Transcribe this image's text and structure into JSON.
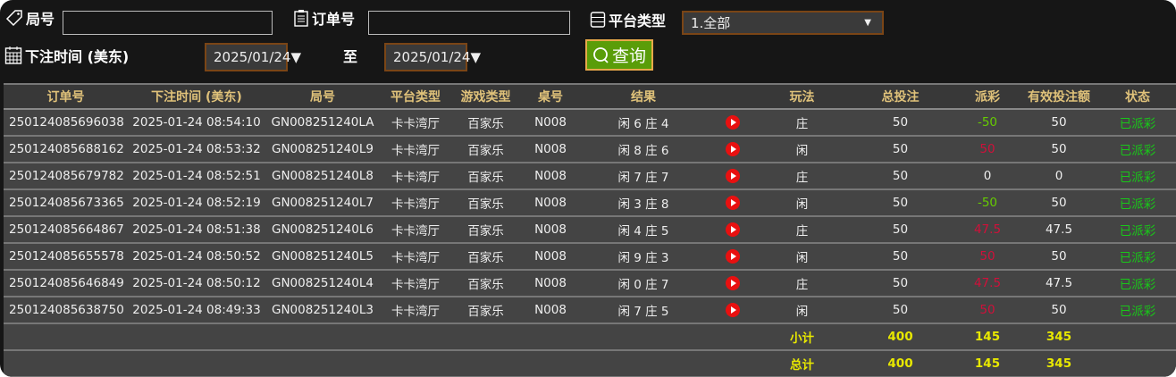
{
  "filters": {
    "round_label": "局号",
    "round_value": "",
    "order_label": "订单号",
    "order_value": "",
    "platform_label": "平台类型",
    "platform_value": "1.全部",
    "time_label": "下注时间 (美东)",
    "date_from": "2025/01/24▼",
    "to_label": "至",
    "date_to": "2025/01/24▼",
    "query_label": "查询"
  },
  "table": {
    "headers": [
      "订单号",
      "下注时间 (美东)",
      "局号",
      "平台类型",
      "游戏类型",
      "桌号",
      "结果",
      "",
      "玩法",
      "总投注",
      "派彩",
      "有效投注额",
      "状态"
    ],
    "rows": [
      {
        "order": "250124085696038",
        "time": "2025-01-24 08:54:10",
        "round": "GN008251240LA",
        "platform": "卡卡湾厅",
        "game": "百家乐",
        "table": "N008",
        "result": "闲 6 庄 4",
        "play": "庄",
        "bet": "50",
        "payout": "-50",
        "valid": "50",
        "status": "已派彩"
      },
      {
        "order": "250124085688162",
        "time": "2025-01-24 08:53:32",
        "round": "GN008251240L9",
        "platform": "卡卡湾厅",
        "game": "百家乐",
        "table": "N008",
        "result": "闲 8 庄 6",
        "play": "闲",
        "bet": "50",
        "payout": "50",
        "valid": "50",
        "status": "已派彩"
      },
      {
        "order": "250124085679782",
        "time": "2025-01-24 08:52:51",
        "round": "GN008251240L8",
        "platform": "卡卡湾厅",
        "game": "百家乐",
        "table": "N008",
        "result": "闲 7 庄 7",
        "play": "庄",
        "bet": "50",
        "payout": "0",
        "valid": "0",
        "status": "已派彩"
      },
      {
        "order": "250124085673365",
        "time": "2025-01-24 08:52:19",
        "round": "GN008251240L7",
        "platform": "卡卡湾厅",
        "game": "百家乐",
        "table": "N008",
        "result": "闲 3 庄 8",
        "play": "闲",
        "bet": "50",
        "payout": "-50",
        "valid": "50",
        "status": "已派彩"
      },
      {
        "order": "250124085664867",
        "time": "2025-01-24 08:51:38",
        "round": "GN008251240L6",
        "platform": "卡卡湾厅",
        "game": "百家乐",
        "table": "N008",
        "result": "闲 4 庄 5",
        "play": "庄",
        "bet": "50",
        "payout": "47.5",
        "valid": "47.5",
        "status": "已派彩"
      },
      {
        "order": "250124085655578",
        "time": "2025-01-24 08:50:52",
        "round": "GN008251240L5",
        "platform": "卡卡湾厅",
        "game": "百家乐",
        "table": "N008",
        "result": "闲 9 庄 3",
        "play": "闲",
        "bet": "50",
        "payout": "50",
        "valid": "50",
        "status": "已派彩"
      },
      {
        "order": "250124085646849",
        "time": "2025-01-24 08:50:12",
        "round": "GN008251240L4",
        "platform": "卡卡湾厅",
        "game": "百家乐",
        "table": "N008",
        "result": "闲 0 庄 7",
        "play": "庄",
        "bet": "50",
        "payout": "47.5",
        "valid": "47.5",
        "status": "已派彩"
      },
      {
        "order": "250124085638750",
        "time": "2025-01-24 08:49:33",
        "round": "GN008251240L3",
        "platform": "卡卡湾厅",
        "game": "百家乐",
        "table": "N008",
        "result": "闲 7 庄 5",
        "play": "闲",
        "bet": "50",
        "payout": "50",
        "valid": "50",
        "status": "已派彩"
      }
    ],
    "subtotal": {
      "label": "小计",
      "bet": "400",
      "payout": "145",
      "valid": "345"
    },
    "total": {
      "label": "总计",
      "bet": "400",
      "payout": "145",
      "valid": "345"
    }
  },
  "colors": {
    "positive_payout": "#d0103a",
    "negative_payout": "#66cc00",
    "status": "#18c818",
    "summary": "#e8e800",
    "header_text": "#e0c27a"
  }
}
